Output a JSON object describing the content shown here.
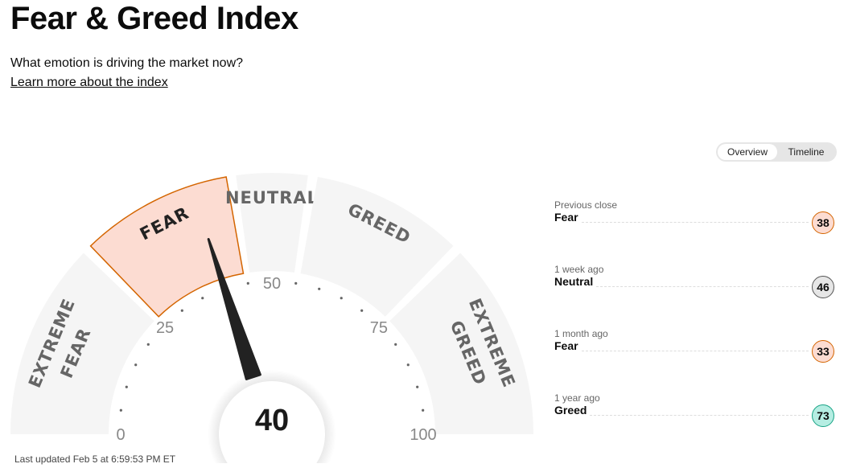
{
  "header": {
    "title": "Fear & Greed Index",
    "subtitle": "What emotion is driving the market now?",
    "learn_link": "Learn more about the index"
  },
  "gauge": {
    "value": 40,
    "value_label": "40",
    "rating": "Fear",
    "segments": [
      {
        "label": [
          "EXTREME",
          "FEAR"
        ],
        "from": 0,
        "to": 25
      },
      {
        "label": [
          "FEAR"
        ],
        "from": 25,
        "to": 45,
        "active": true
      },
      {
        "label": [
          "NEUTRAL"
        ],
        "from": 45,
        "to": 55
      },
      {
        "label": [
          "GREED"
        ],
        "from": 55,
        "to": 75
      },
      {
        "label": [
          "EXTREME",
          "GREED"
        ],
        "from": 75,
        "to": 100
      }
    ],
    "ticks": [
      "0",
      "25",
      "50",
      "75",
      "100"
    ],
    "colors": {
      "segment": "#f5f5f5",
      "active_fill": "#fcdcd2",
      "active_stroke": "#d46500",
      "needle": "#222222"
    }
  },
  "last_updated": "Last updated Feb 5 at 6:59:53 PM ET",
  "tabs": {
    "overview": "Overview",
    "timeline": "Timeline"
  },
  "history": [
    {
      "when": "Previous close",
      "rating": "Fear",
      "value": "38",
      "bg": "#fcdcd2",
      "border": "#d46500"
    },
    {
      "when": "1 week ago",
      "rating": "Neutral",
      "value": "46",
      "bg": "#e6e6e6",
      "border": "#555555"
    },
    {
      "when": "1 month ago",
      "rating": "Fear",
      "value": "33",
      "bg": "#fcdcd2",
      "border": "#d46500"
    },
    {
      "when": "1 year ago",
      "rating": "Greed",
      "value": "73",
      "bg": "#b5ede2",
      "border": "#1aa486"
    }
  ]
}
